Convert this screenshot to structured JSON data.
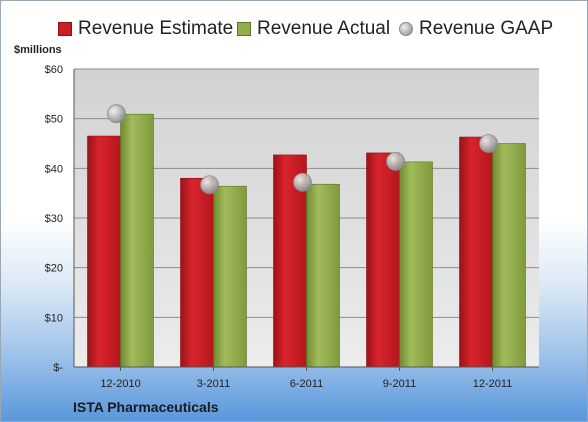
{
  "chart_data": {
    "type": "bar",
    "categories": [
      "12-2010",
      "3-2011",
      "6-2011",
      "9-2011",
      "12-2011"
    ],
    "series": [
      {
        "name": "Revenue Estimate",
        "kind": "bar",
        "color": "#cc1c24",
        "values": [
          46.5,
          38.0,
          42.7,
          43.1,
          46.3
        ]
      },
      {
        "name": "Revenue Actual",
        "kind": "bar",
        "color": "#93ac4e",
        "values": [
          50.9,
          36.4,
          36.8,
          41.3,
          45.0
        ]
      },
      {
        "name": "Revenue GAAP",
        "kind": "marker",
        "color": "#b5b5b5",
        "values": [
          51.0,
          36.7,
          37.2,
          41.4,
          45.0
        ]
      }
    ],
    "ylabel": "$millions",
    "ylim": [
      0,
      60
    ],
    "yticks": [
      0,
      10,
      20,
      30,
      40,
      50,
      60
    ],
    "ytick_labels": [
      "$-",
      "$10",
      "$20",
      "$30",
      "$40",
      "$50",
      "$60"
    ],
    "grid": true,
    "legend_position": "top"
  },
  "footer": {
    "company": "ISTA Pharmaceuticals"
  }
}
